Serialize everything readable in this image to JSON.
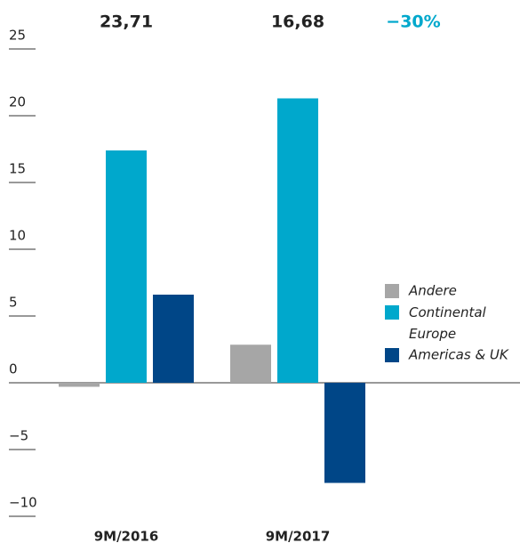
{
  "chart_data": {
    "type": "bar",
    "categories": [
      "9M/2016",
      "9M/2017"
    ],
    "series": [
      {
        "name": "Andere",
        "color": "#a6a6a6",
        "values": [
          -0.3,
          2.85
        ]
      },
      {
        "name": "Continental Europe",
        "color": "#00a8cc",
        "values": [
          17.4,
          21.3
        ]
      },
      {
        "name": "Americas & UK",
        "color": "#004687",
        "values": [
          6.6,
          -7.5
        ]
      }
    ],
    "annotations": [
      "23,71",
      "16,68",
      "−30%"
    ],
    "ylim": [
      -10,
      25
    ],
    "yticks": [
      {
        "value": -10,
        "label": "−10"
      },
      {
        "value": -5,
        "label": "−5"
      },
      0,
      5,
      10,
      15,
      20,
      25
    ],
    "legend": "right"
  }
}
